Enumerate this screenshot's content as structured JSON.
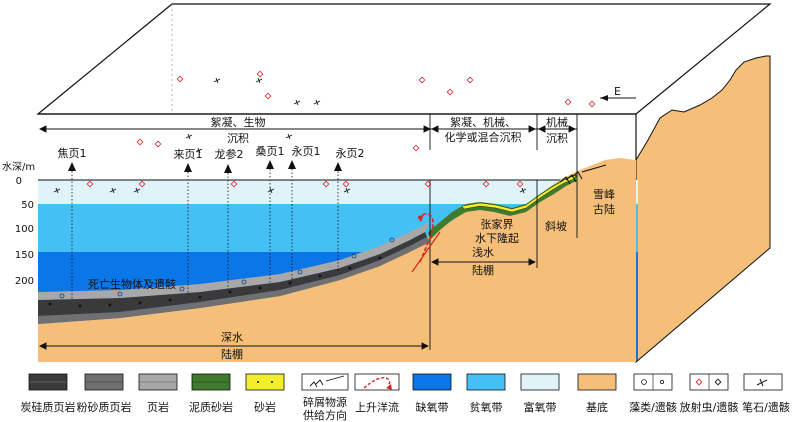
{
  "depth_axis": {
    "title": "水深/m",
    "ticks": [
      "0",
      "50",
      "100",
      "150",
      "200"
    ]
  },
  "wells": [
    "焦页1",
    "来页1",
    "龙参2",
    "桑页1",
    "永页1",
    "永页2"
  ],
  "zones": {
    "sed_flocculation_bio": [
      "絮凝、生物",
      "沉积"
    ],
    "sed_mixed": [
      "絮凝、机械、",
      "化学或混合沉积"
    ],
    "sed_mechanical": [
      "机械",
      "沉积"
    ],
    "uplift": [
      "张家界",
      "水下隆起"
    ],
    "slope": "斜坡",
    "shallow_shelf": [
      "浅水",
      "陆棚"
    ],
    "deep_shelf": [
      "深水",
      "陆棚"
    ],
    "xuefeng": [
      "雪峰",
      "古陆"
    ],
    "dead_organisms": "死亡生物体及遗骸",
    "compass": "E"
  },
  "legend": [
    {
      "label": "炭硅质页岩",
      "type": "carb-si-shale",
      "color": "#3a3a3a"
    },
    {
      "label": "粉砂质页岩",
      "type": "silty-shale",
      "color": "#707070"
    },
    {
      "label": "页岩",
      "type": "shale",
      "color": "#a8a8a8"
    },
    {
      "label": "泥质砂岩",
      "type": "muddy-sandstone",
      "color": "#3f7a2e"
    },
    {
      "label": "砂岩",
      "type": "sandstone",
      "color": "#f2ef2a"
    },
    {
      "label": [
        "碎屑物源",
        "供给方向"
      ],
      "type": "detrital-supply-direction",
      "color": "#ffffff"
    },
    {
      "label": "上升洋流",
      "type": "upwelling",
      "color": "#dd2222"
    },
    {
      "label": "缺氧带",
      "type": "anoxic-zone",
      "color": "#0a76e8"
    },
    {
      "label": "贫氧带",
      "type": "dysoxic-zone",
      "color": "#44c0f5"
    },
    {
      "label": "富氧带",
      "type": "oxic-zone",
      "color": "#dff3f9"
    },
    {
      "label": "基底",
      "type": "basement",
      "color": "#f5bf79"
    },
    {
      "label": "藻类/遗骸",
      "type": "algae-remains",
      "color": "#ffffff"
    },
    {
      "label": "放射虫/遗骸",
      "type": "radiolaria-remains",
      "color": "#ffffff"
    },
    {
      "label": "笔石/遗骸",
      "type": "graptolite-remains",
      "color": "#ffffff"
    }
  ]
}
